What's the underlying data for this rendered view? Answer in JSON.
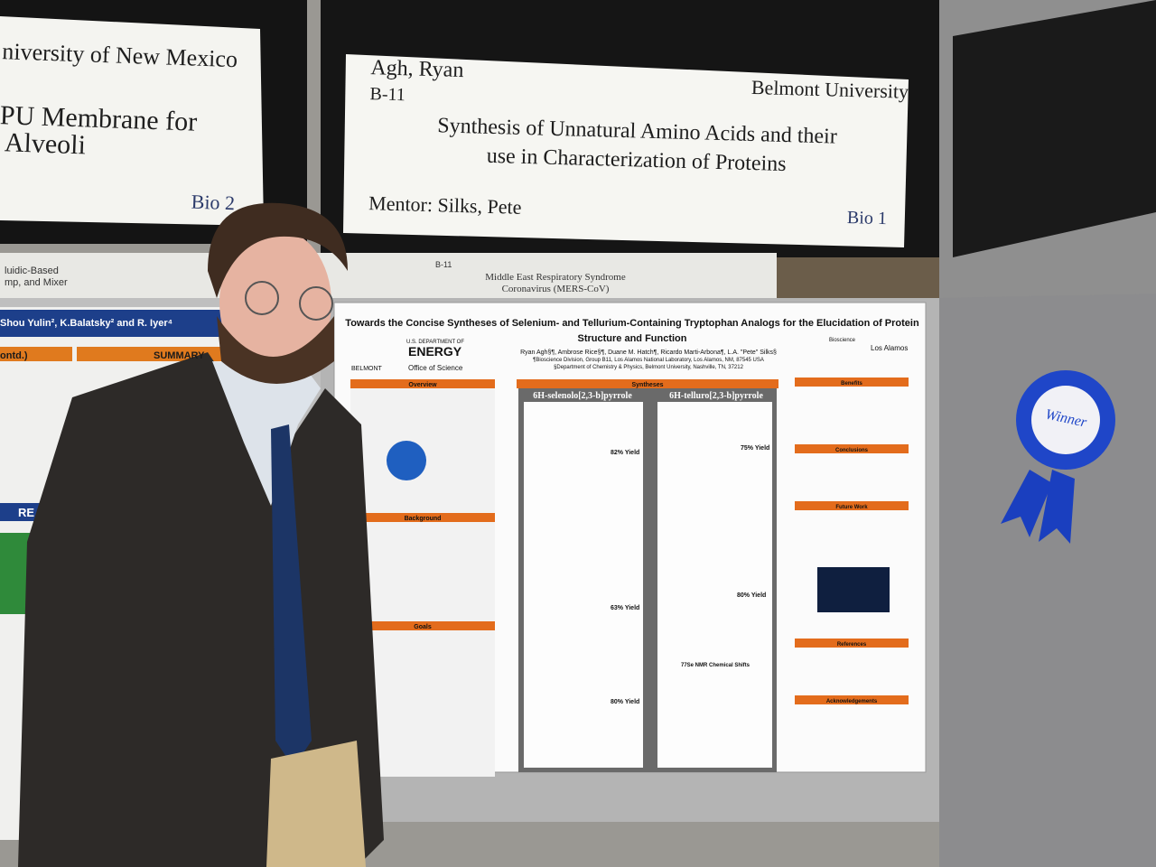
{
  "left_sign": {
    "lines": [
      "niversity of New Mexico",
      "PU Membrane for",
      "Alveoli"
    ],
    "category": "Bio 2"
  },
  "main_sign": {
    "name": "Agh,  Ryan",
    "board": "B-11",
    "school": "Belmont University",
    "title_lines": [
      "Synthesis of Unnatural Amino Acids and their",
      "use in Characterization of Proteins"
    ],
    "mentor": "Mentor: Silks, Pete",
    "category": "Bio 1"
  },
  "back_signs": {
    "left": [
      "luidic-Based",
      "mp, and Mixer"
    ],
    "board": "B-11",
    "middle": [
      "Middle East Respiratory Syndrome",
      "Coronavirus (MERS-CoV)"
    ]
  },
  "left_poster": {
    "authors": "Shou Yulin², K.Balatsky² and R. Iyer⁴",
    "continued": "ontd.)",
    "summary": "SUMMARY",
    "results": "RE"
  },
  "poster": {
    "title_lines": [
      "Towards the Concise Syntheses of Selenium- and Tellurium-Containing Tryptophan Analogs for the Elucidation of Protein",
      "Structure and Function"
    ],
    "authors": "Ryan Agh§¶, Ambrose Rice§¶, Duane M. Hatch¶, Ricardo Marti-Arbona¶, L.A. \"Pete\" Silks§",
    "affiliations": [
      "¶Bioscience Division, Group B11, Los Alamos National Laboratory, Los Alamos, NM, 87545 USA",
      "§Department of Chemistry & Physics, Belmont University, Nashville, TN, 37212"
    ],
    "logos": {
      "doe_top": "U.S. DEPARTMENT OF",
      "doe": "ENERGY",
      "office": "Office of Science",
      "belmont": "BELMONT",
      "bioscience": "Bioscience",
      "lanl": "Los Alamos"
    },
    "left_sections": [
      "Overview",
      "Background",
      "Goals"
    ],
    "syntheses": "Syntheses",
    "right_sections": [
      "Benefits",
      "Conclusions",
      "Future Work",
      "References",
      "Acknowledgements"
    ],
    "columns": [
      "6H-selenolo[2,3-b]pyrrole",
      "6H-telluro[2,3-b]pyrrole"
    ],
    "selenium_yields": [
      "82% Yield",
      "63% Yield",
      "80% Yield"
    ],
    "tellurium_yields": [
      "75% Yield",
      "80% Yield"
    ],
    "nmr": "77Se NMR Chemical Shifts"
  },
  "ribbon": "Winner"
}
